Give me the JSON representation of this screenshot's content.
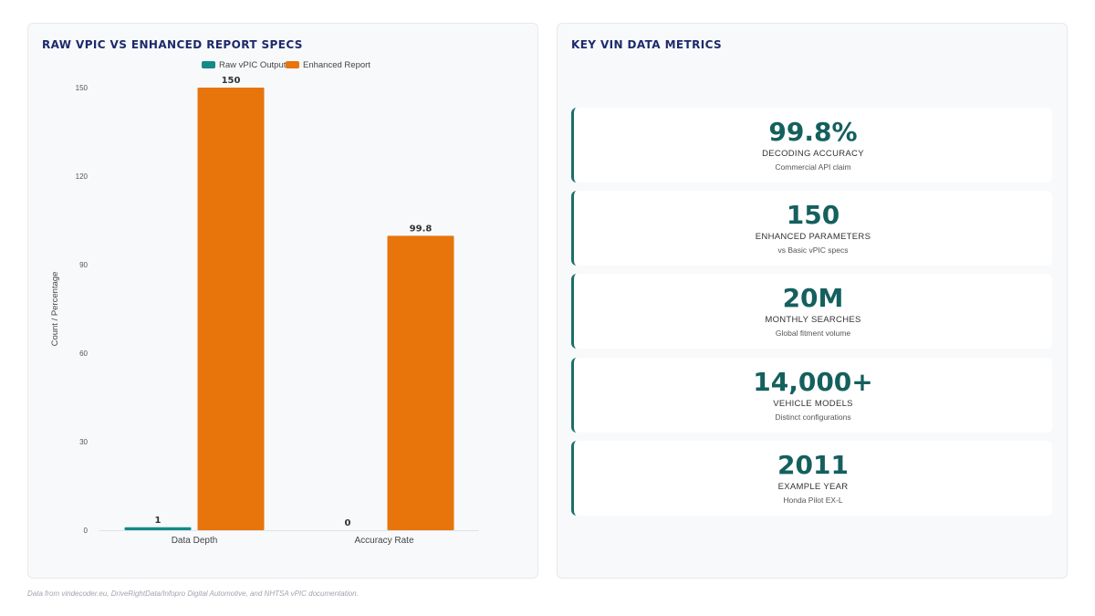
{
  "left_panel": {
    "title": "RAW VPIC VS ENHANCED REPORT SPECS"
  },
  "right_panel": {
    "title": "KEY VIN DATA METRICS"
  },
  "colors": {
    "raw": "#138a88",
    "enhanced": "#e8740c",
    "title": "#1d2a6b",
    "metric_value": "#14605e"
  },
  "chart_data": {
    "type": "bar",
    "title": "RAW VPIC VS ENHANCED REPORT SPECS",
    "categories": [
      "Data Depth",
      "Accuracy Rate"
    ],
    "series": [
      {
        "name": "Raw vPIC Output",
        "values": [
          1,
          0
        ],
        "labels": [
          "1",
          "0"
        ],
        "color": "#138a88"
      },
      {
        "name": "Enhanced Report",
        "values": [
          150,
          99.8
        ],
        "labels": [
          "150",
          "99.8"
        ],
        "color": "#e8740c"
      }
    ],
    "xlabel": "",
    "ylabel": "Count / Percentage",
    "ylim": [
      0,
      150
    ],
    "yticks": [
      0,
      30,
      60,
      90,
      120,
      150
    ],
    "legend": "top-center",
    "grid": false
  },
  "metrics": [
    {
      "value": "99.8%",
      "label": "DECODING ACCURACY",
      "sub": "Commercial API claim"
    },
    {
      "value": "150",
      "label": "ENHANCED PARAMETERS",
      "sub": "vs Basic vPIC specs"
    },
    {
      "value": "20M",
      "label": "MONTHLY SEARCHES",
      "sub": "Global fitment volume"
    },
    {
      "value": "14,000+",
      "label": "VEHICLE MODELS",
      "sub": "Distinct configurations"
    },
    {
      "value": "2011",
      "label": "EXAMPLE YEAR",
      "sub": "Honda Pilot EX-L"
    }
  ],
  "footnote": "Data from vindecoder.eu, DriveRightData/Infopro Digital Automotive, and NHTSA vPIC documentation."
}
